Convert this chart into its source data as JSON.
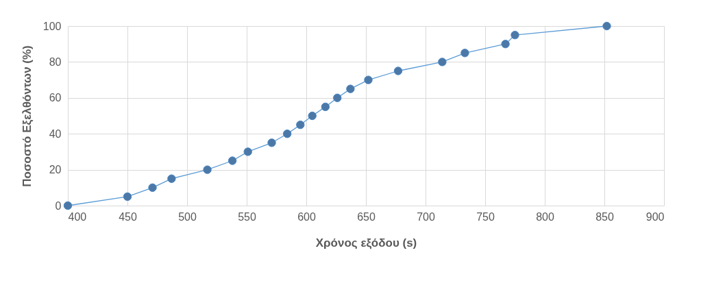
{
  "chart_data": {
    "type": "line",
    "xlabel": "Χρόνος εξόδου (s)",
    "ylabel": "Ποσοστό Εξελθόντων (%)",
    "x": [
      400,
      450,
      471,
      487,
      517,
      538,
      551,
      571,
      584,
      595,
      605,
      616,
      626,
      637,
      652,
      677,
      714,
      733,
      767,
      775,
      852
    ],
    "series": [
      {
        "color": "#5b9bd5",
        "values": [
          0,
          5,
          10,
          15,
          20,
          25,
          30,
          35,
          40,
          45,
          50,
          55,
          60,
          65,
          70,
          75,
          80,
          85,
          90,
          95,
          100
        ]
      }
    ],
    "xlim": [
      400,
      900
    ],
    "xticks": [
      400,
      450,
      500,
      550,
      600,
      650,
      700,
      750,
      800,
      850,
      900
    ],
    "ylim": [
      0,
      100
    ],
    "yticks": [
      0,
      20,
      40,
      60,
      80,
      100
    ],
    "grid": true,
    "marker": "circle",
    "line_style": "solid"
  }
}
